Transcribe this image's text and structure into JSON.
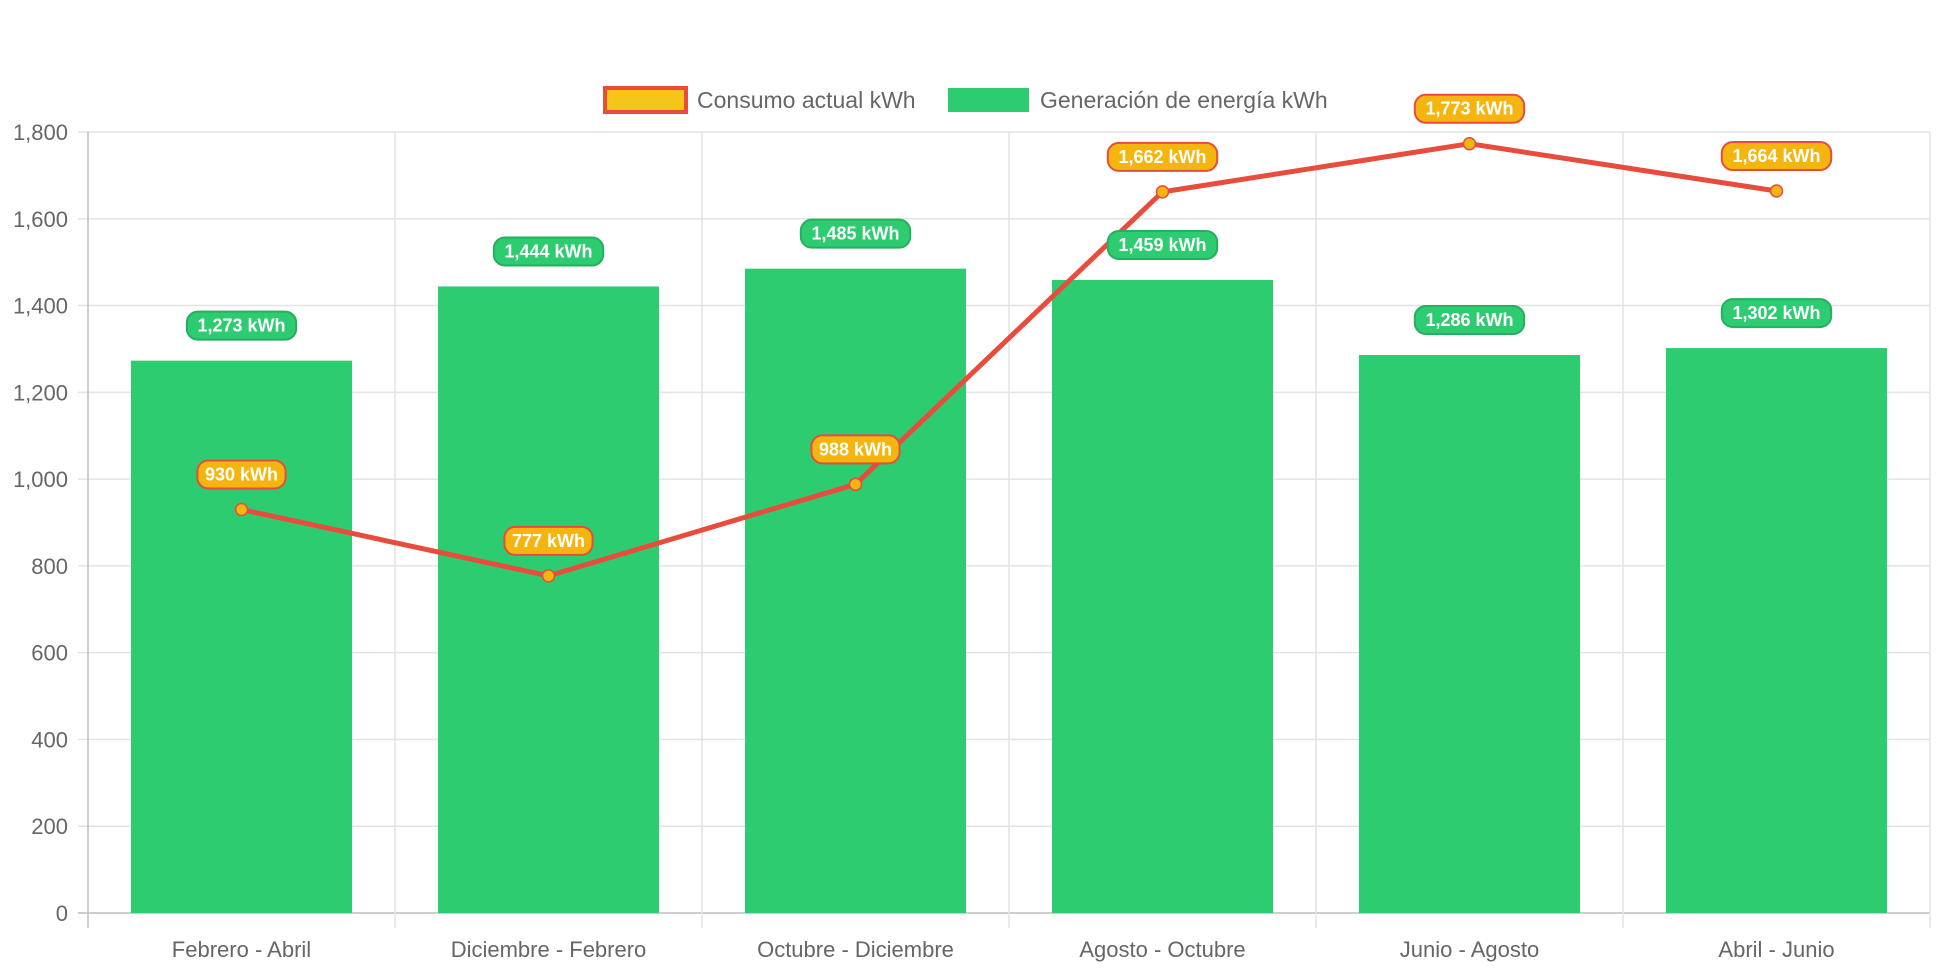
{
  "chart_data": {
    "type": "bar",
    "categories": [
      "Febrero - Abril",
      "Diciembre - Febrero",
      "Octubre - Diciembre",
      "Agosto - Octubre",
      "Junio - Agosto",
      "Abril - Junio"
    ],
    "series": [
      {
        "name": "Consumo actual kWh",
        "type": "line",
        "values": [
          930,
          777,
          988,
          1662,
          1773,
          1664
        ],
        "data_labels": [
          "930 kWh",
          "777 kWh",
          "988 kWh",
          "1,662 kWh",
          "1,773 kWh",
          "1,664 kWh"
        ],
        "line_color": "#e74c3c",
        "point_color": "#f5b50f"
      },
      {
        "name": "Generación de energía kWh",
        "type": "bar",
        "values": [
          1273,
          1444,
          1485,
          1459,
          1286,
          1302
        ],
        "data_labels": [
          "1,273 kWh",
          "1,444 kWh",
          "1,485 kWh",
          "1,459 kWh",
          "1,286 kWh",
          "1,302 kWh"
        ],
        "color": "#2ecc71"
      }
    ],
    "ylim": [
      0,
      1800
    ],
    "yticks": [
      "0",
      "200",
      "400",
      "600",
      "800",
      "1,000",
      "1,200",
      "1,400",
      "1,600",
      "1,800"
    ],
    "grid": true,
    "legend_position": "top"
  }
}
